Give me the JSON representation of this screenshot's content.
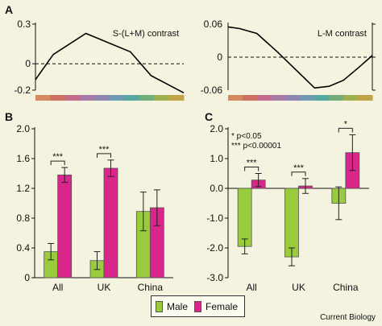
{
  "chart_data": [
    {
      "type": "line",
      "panel": "A",
      "annotation": "S-(L+M) contrast",
      "ylim": [
        -0.2,
        0.3
      ],
      "yticks": [
        "0.3",
        "0",
        "-0.2"
      ],
      "ytick_values": [
        0.3,
        0,
        -0.2
      ],
      "reference_line": 0,
      "series": [
        {
          "x": [
            0,
            0.12,
            0.34,
            0.64,
            0.78,
            1
          ],
          "values": [
            -0.12,
            0.07,
            0.23,
            0.09,
            -0.09,
            -0.22
          ]
        }
      ],
      "colors": {
        "line": "#000000"
      }
    },
    {
      "type": "line",
      "panel": "A",
      "annotation": "L-M contrast",
      "ylim": [
        -0.06,
        0.06
      ],
      "yticks": [
        "0.06",
        "0",
        "-0.06"
      ],
      "ytick_values": [
        0.06,
        0,
        -0.06
      ],
      "reference_line": 0,
      "series": [
        {
          "x": [
            0,
            0.08,
            0.2,
            0.34,
            0.6,
            0.7,
            0.8,
            0.9,
            1
          ],
          "values": [
            0.055,
            0.052,
            0.043,
            0.01,
            -0.056,
            -0.053,
            -0.042,
            -0.02,
            0.003
          ]
        }
      ],
      "colors": {
        "line": "#000000"
      }
    },
    {
      "type": "bar",
      "panel": "B",
      "categories": [
        "All",
        "UK",
        "China"
      ],
      "ylim": [
        0,
        2.0
      ],
      "yticks": [
        "0",
        "0.4",
        "0.8",
        "1.2",
        "1.6",
        "2.0"
      ],
      "ytick_values": [
        0,
        0.4,
        0.8,
        1.2,
        1.6,
        2.0
      ],
      "series": [
        {
          "name": "Male",
          "values": [
            0.35,
            0.23,
            0.89
          ],
          "errors": [
            0.11,
            0.12,
            0.26
          ]
        },
        {
          "name": "Female",
          "values": [
            1.38,
            1.47,
            0.94
          ],
          "errors": [
            0.1,
            0.11,
            0.24
          ]
        }
      ],
      "significance": [
        "***",
        "***",
        ""
      ],
      "colors": {
        "male": "#9acb3c",
        "female": "#d8268b"
      }
    },
    {
      "type": "bar",
      "panel": "C",
      "categories": [
        "All",
        "UK",
        "China"
      ],
      "ylim": [
        -3.0,
        2.0
      ],
      "yticks": [
        "2.0",
        "1.0",
        "0.0",
        "-1.0",
        "-2.0",
        "-3.0"
      ],
      "ytick_values": [
        2.0,
        1.0,
        0.0,
        -1.0,
        -2.0,
        -3.0
      ],
      "series": [
        {
          "name": "Male",
          "values": [
            -1.95,
            -2.3,
            -0.5
          ],
          "errors": [
            0.25,
            0.3,
            0.55
          ]
        },
        {
          "name": "Female",
          "values": [
            0.28,
            0.08,
            1.2
          ],
          "errors": [
            0.22,
            0.25,
            0.6
          ]
        }
      ],
      "significance": [
        "***",
        "***",
        "*"
      ],
      "notes": [
        "* p<0.05",
        "*** p<0.00001"
      ],
      "colors": {
        "male": "#9acb3c",
        "female": "#d8268b"
      }
    }
  ],
  "panel_labels": {
    "a": "A",
    "b": "B",
    "c": "C"
  },
  "legend": {
    "male": "Male",
    "female": "Female"
  },
  "credit": "Current Biology",
  "spectrum_colors": [
    "#d48a5c",
    "#d07060",
    "#c46c8c",
    "#a77aa8",
    "#8e86b0",
    "#6f9bb2",
    "#5aa6a0",
    "#73ad78",
    "#9fb050",
    "#c2a446"
  ]
}
